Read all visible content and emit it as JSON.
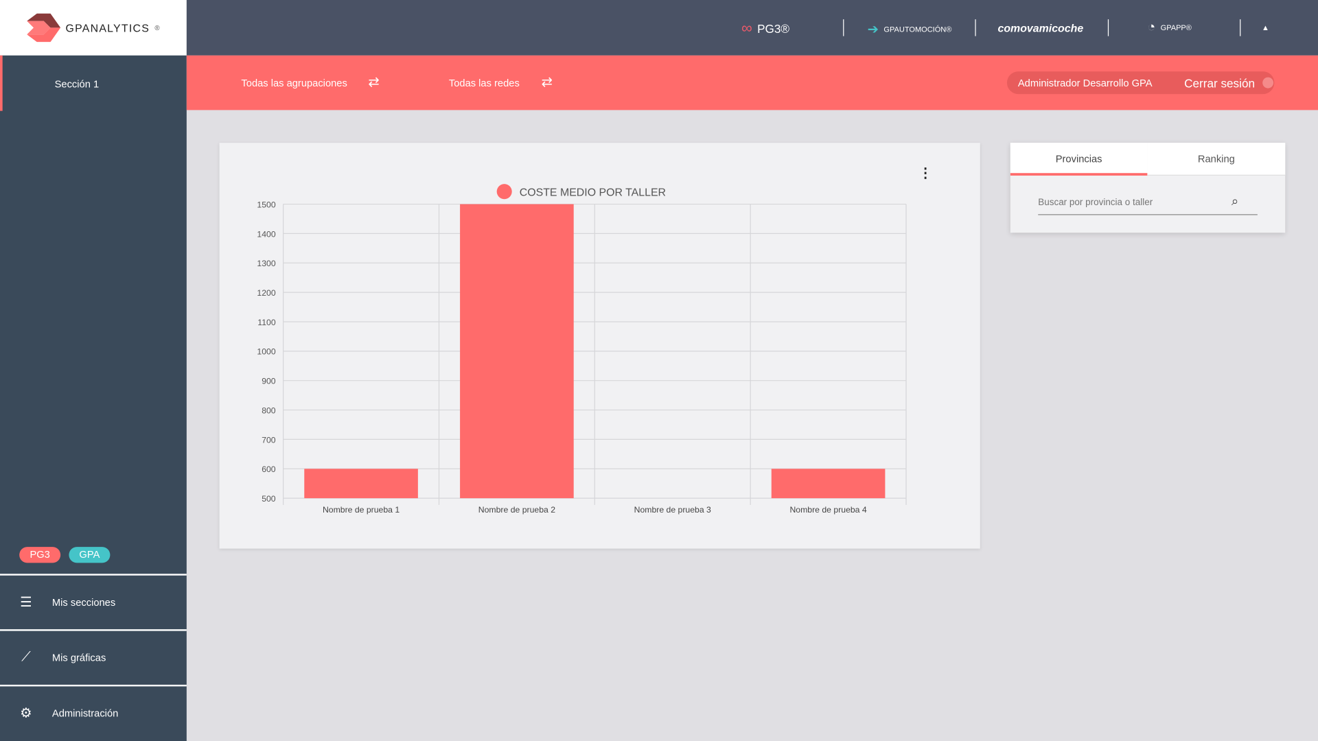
{
  "logo": {
    "text": "GPANALYTICS",
    "mark": "®"
  },
  "topbar": {
    "brands": [
      "PG3®",
      "GPAUTOMOCIÓN®",
      "comovamicoche",
      "GPAPP®"
    ]
  },
  "sidebar": {
    "section": "Sección 1",
    "tags": [
      "PG3",
      "GPA"
    ],
    "items": [
      {
        "label": "Mis secciones",
        "icon": "menu-icon"
      },
      {
        "label": "Mis gráficas",
        "icon": "trend-icon"
      },
      {
        "label": "Administración",
        "icon": "gear-icon"
      }
    ]
  },
  "filters": {
    "groups": "Todas las agrupaciones",
    "networks": "Todas las redes"
  },
  "user": {
    "name": "Administrador Desarrollo GPA",
    "logout": "Cerrar sesión"
  },
  "panel": {
    "tabs": [
      "Provincias",
      "Ranking"
    ],
    "search_placeholder": "Buscar por provincia o taller"
  },
  "colors": {
    "accent": "#ff6b6b",
    "teal": "#45c4c8",
    "header": "#4a5265",
    "sidebar": "#3a4a5a"
  },
  "chart_data": {
    "type": "bar",
    "title": "COSTE MEDIO POR TALLER",
    "categories": [
      "Nombre de prueba 1",
      "Nombre de prueba 2",
      "Nombre de prueba 3",
      "Nombre de prueba 4"
    ],
    "values": [
      600,
      1500,
      null,
      600
    ],
    "ylim": [
      500,
      1500
    ],
    "yticks": [
      500,
      600,
      700,
      800,
      900,
      1000,
      1100,
      1200,
      1300,
      1400,
      1500
    ],
    "legend": "top",
    "grid": true
  }
}
